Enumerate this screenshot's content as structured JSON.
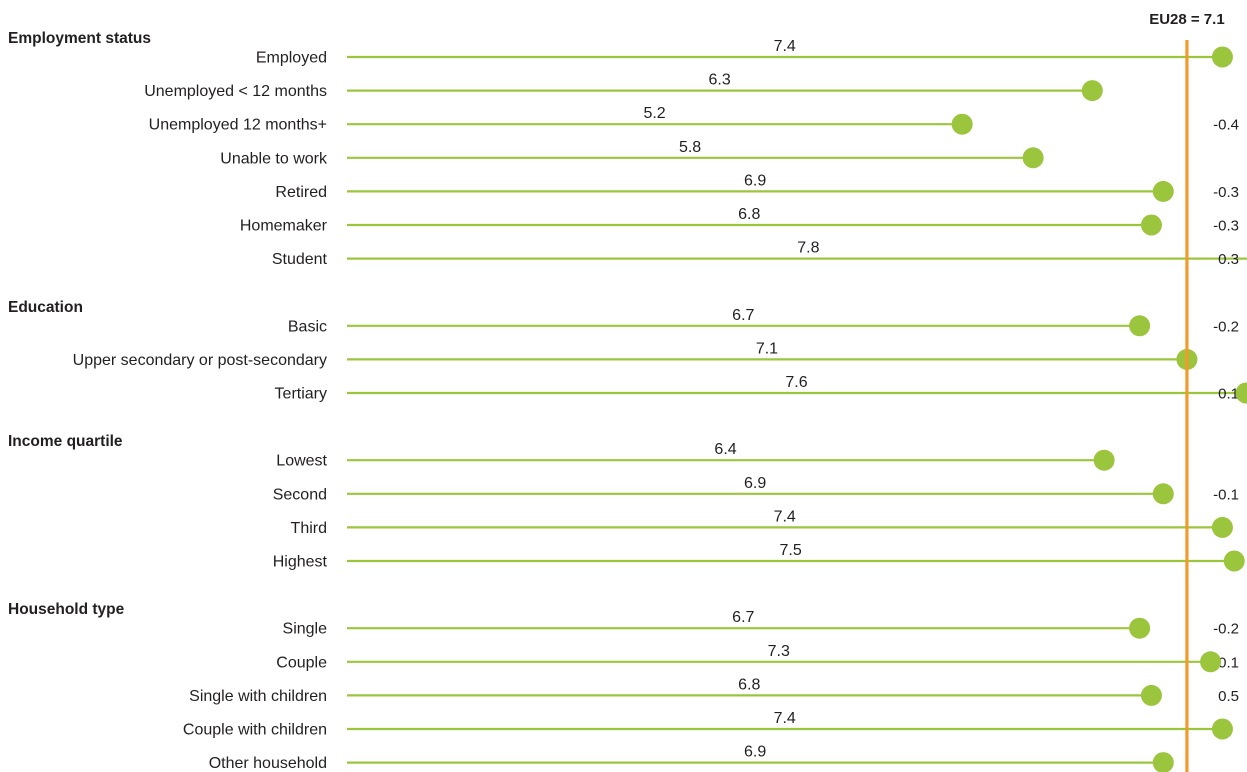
{
  "chart_data": {
    "type": "lollipop",
    "reference": {
      "label": "EU28 = 7.1",
      "value": 7.1
    },
    "xlim": [
      0,
      8.2
    ],
    "colors": {
      "stem": "#9bc53d",
      "dot": "#9bc53d",
      "reference": "#f39a2e"
    },
    "groups": [
      {
        "title": "Employment status",
        "items": [
          {
            "label": "Employed",
            "value": 7.4,
            "value_text": "7.4",
            "change": ""
          },
          {
            "label": "Unemployed < 12 months",
            "value": 6.3,
            "value_text": "6.3",
            "change": ""
          },
          {
            "label": "Unemployed 12 months+",
            "value": 5.2,
            "value_text": "5.2",
            "change": "-0.4"
          },
          {
            "label": "Unable to work",
            "value": 5.8,
            "value_text": "5.8",
            "change": ""
          },
          {
            "label": "Retired",
            "value": 6.9,
            "value_text": "6.9",
            "change": "-0.3"
          },
          {
            "label": "Homemaker",
            "value": 6.8,
            "value_text": "6.8",
            "change": "-0.3"
          },
          {
            "label": "Student",
            "value": 7.8,
            "value_text": "7.8",
            "change": "0.3"
          }
        ]
      },
      {
        "title": "Education",
        "items": [
          {
            "label": "Basic",
            "value": 6.7,
            "value_text": "6.7",
            "change": "-0.2"
          },
          {
            "label": "Upper secondary or post-secondary",
            "value": 7.1,
            "value_text": "7.1",
            "change": ""
          },
          {
            "label": "Tertiary",
            "value": 7.6,
            "value_text": "7.6",
            "change": "0.1"
          }
        ]
      },
      {
        "title": "Income quartile",
        "items": [
          {
            "label": "Lowest",
            "value": 6.4,
            "value_text": "6.4",
            "change": ""
          },
          {
            "label": "Second",
            "value": 6.9,
            "value_text": "6.9",
            "change": "-0.1"
          },
          {
            "label": "Third",
            "value": 7.4,
            "value_text": "7.4",
            "change": ""
          },
          {
            "label": "Highest",
            "value": 7.5,
            "value_text": "7.5",
            "change": ""
          }
        ]
      },
      {
        "title": "Household type",
        "items": [
          {
            "label": "Single",
            "value": 6.7,
            "value_text": "6.7",
            "change": "-0.2"
          },
          {
            "label": "Couple",
            "value": 7.3,
            "value_text": "7.3",
            "change": "-0.1"
          },
          {
            "label": "Single with children",
            "value": 6.8,
            "value_text": "6.8",
            "change": "0.5"
          },
          {
            "label": "Couple with children",
            "value": 7.4,
            "value_text": "7.4",
            "change": ""
          },
          {
            "label": "Other household",
            "value": 6.9,
            "value_text": "6.9",
            "change": ""
          }
        ]
      }
    ]
  }
}
